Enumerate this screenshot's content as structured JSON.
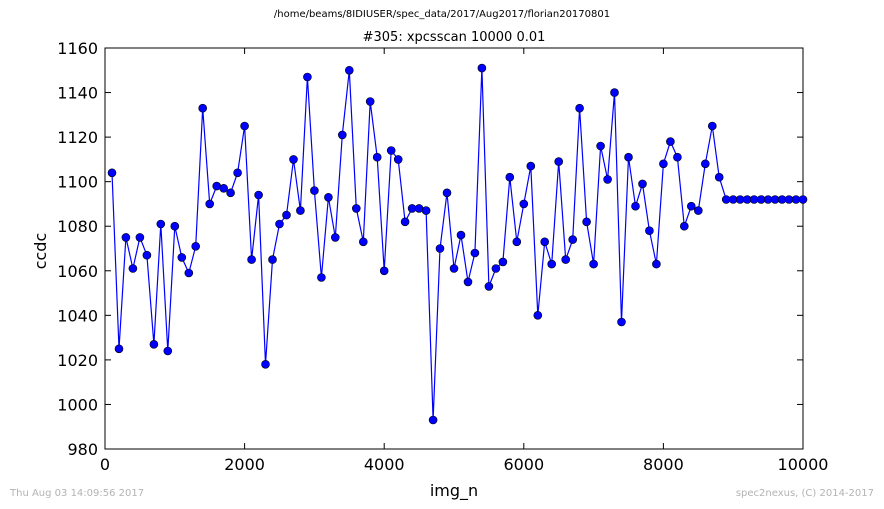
{
  "header": {
    "suptitle": "/home/beams/8IDIUSER/spec_data/2017/Aug2017/florian20170801"
  },
  "footer": {
    "timestamp": "Thu Aug 03 14:09:56 2017",
    "credit": "spec2nexus, (C) 2014-2017"
  },
  "colors": {
    "series": "#0000ff",
    "footer_text": "#b3b3b3"
  },
  "chart_data": {
    "type": "line",
    "title": "#305: xpcsscan 10000 0.01",
    "xlabel": "img_n",
    "ylabel": "ccdc",
    "xlim": [
      0,
      10000
    ],
    "ylim": [
      980,
      1160
    ],
    "xticks": [
      0,
      2000,
      4000,
      6000,
      8000,
      10000
    ],
    "yticks": [
      980,
      1000,
      1020,
      1040,
      1060,
      1080,
      1100,
      1120,
      1140,
      1160
    ],
    "grid": false,
    "marker": "circle",
    "series": [
      {
        "x": [
          100,
          200,
          300,
          400,
          500,
          600,
          700,
          800,
          900,
          1000,
          1100,
          1200,
          1300,
          1400,
          1500,
          1600,
          1700,
          1800,
          1900,
          2000,
          2100,
          2200,
          2300,
          2400,
          2500,
          2600,
          2700,
          2800,
          2900,
          3000,
          3100,
          3200,
          3300,
          3400,
          3500,
          3600,
          3700,
          3800,
          3900,
          4000,
          4100,
          4200,
          4300,
          4400,
          4500,
          4600,
          4700,
          4800,
          4900,
          5000,
          5100,
          5200,
          5300,
          5400,
          5500,
          5600,
          5700,
          5800,
          5900,
          6000,
          6100,
          6200,
          6300,
          6400,
          6500,
          6600,
          6700,
          6800,
          6900,
          7000,
          7100,
          7200,
          7300,
          7400,
          7500,
          7600,
          7700,
          7800,
          7900,
          8000,
          8100,
          8200,
          8300,
          8400,
          8500,
          8600,
          8700,
          8800,
          8900,
          9000,
          9100,
          9200,
          9300,
          9400,
          9500,
          9600,
          9700,
          9800,
          9900,
          10000
        ],
        "values": [
          1104,
          1025,
          1075,
          1061,
          1075,
          1067,
          1027,
          1081,
          1024,
          1080,
          1066,
          1059,
          1071,
          1133,
          1090,
          1098,
          1097,
          1095,
          1104,
          1125,
          1065,
          1094,
          1018,
          1065,
          1081,
          1085,
          1110,
          1087,
          1147,
          1096,
          1057,
          1093,
          1075,
          1121,
          1150,
          1088,
          1073,
          1136,
          1111,
          1060,
          1114,
          1110,
          1082,
          1088,
          1088,
          1087,
          993,
          1070,
          1095,
          1061,
          1076,
          1055,
          1068,
          1151,
          1053,
          1061,
          1064,
          1102,
          1073,
          1090,
          1107,
          1040,
          1073,
          1063,
          1109,
          1065,
          1074,
          1133,
          1082,
          1063,
          1116,
          1101,
          1140,
          1037,
          1111,
          1089,
          1099,
          1078,
          1063,
          1108,
          1118,
          1111,
          1080,
          1089,
          1087,
          1108,
          1125,
          1102,
          1092,
          1092,
          1092,
          1092,
          1092,
          1092,
          1092,
          1092,
          1092,
          1092,
          1092,
          1092
        ]
      }
    ]
  }
}
